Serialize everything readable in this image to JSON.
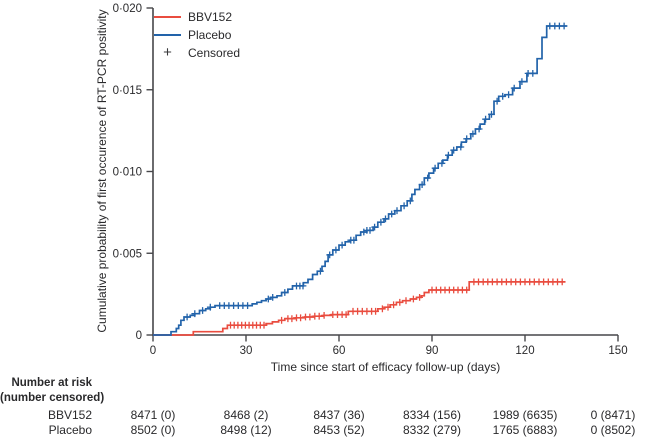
{
  "figure": {
    "y_axis_title": "Cumulative probability of first occurence of RT-PCR positivity",
    "x_axis_title": "Time since start of efficacy follow-up (days)"
  },
  "legend": {
    "items": [
      {
        "label": "BBV152",
        "marker": "line",
        "color": "#e94c3f"
      },
      {
        "label": "Placebo",
        "marker": "line",
        "color": "#2263aa"
      },
      {
        "label": "Censored",
        "marker": "+",
        "color": "#39393b"
      }
    ]
  },
  "colors": {
    "axis": "#47474a",
    "text": "#2a2a2c",
    "bbv152": "#e94c3f",
    "placebo": "#2263aa"
  },
  "risk_table": {
    "header_line1": "Number at risk",
    "header_line2": "(number censored)",
    "column_days": [
      0,
      30,
      60,
      90,
      120,
      150
    ],
    "rows": [
      {
        "label": "BBV152",
        "values": [
          "8471 (0)",
          "8468 (2)",
          "8437 (36)",
          "8334 (156)",
          "1989 (6635)",
          "0 (8471)"
        ]
      },
      {
        "label": "Placebo",
        "values": [
          "8502 (0)",
          "8498 (12)",
          "8453 (52)",
          "8332 (279)",
          "1765 (6883)",
          "0 (8502)"
        ]
      }
    ]
  },
  "chart_data": {
    "type": "line",
    "subtype": "kaplan-meier-step",
    "title": "",
    "xlabel": "Time since start of efficacy follow-up (days)",
    "ylabel": "Cumulative probability of first occurence of RT-PCR positivity",
    "xlim": [
      0,
      150
    ],
    "ylim": [
      0,
      0.02
    ],
    "grid": false,
    "legend_position": "top-left",
    "x_ticks": [
      {
        "value": 0,
        "label": "0"
      },
      {
        "value": 30,
        "label": "30"
      },
      {
        "value": 60,
        "label": "60"
      },
      {
        "value": 90,
        "label": "90"
      },
      {
        "value": 120,
        "label": "120"
      },
      {
        "value": 150,
        "label": "150"
      }
    ],
    "y_ticks": [
      {
        "value": 0,
        "label": "0"
      },
      {
        "value": 0.005,
        "label": "0·005"
      },
      {
        "value": 0.01,
        "label": "0·010"
      },
      {
        "value": 0.015,
        "label": "0·015"
      },
      {
        "value": 0.02,
        "label": "0·020"
      }
    ],
    "series": [
      {
        "name": "BBV152",
        "color": "#e94c3f",
        "points": [
          [
            0,
            0
          ],
          [
            13,
            0.0002
          ],
          [
            22.5,
            0.0004
          ],
          [
            24,
            0.0006
          ],
          [
            36.5,
            0.0007
          ],
          [
            38.5,
            0.0008
          ],
          [
            40.5,
            0.0009
          ],
          [
            42.5,
            0.001
          ],
          [
            46,
            0.00105
          ],
          [
            49,
            0.0011
          ],
          [
            52,
            0.00115
          ],
          [
            55,
            0.0012
          ],
          [
            57.5,
            0.00125
          ],
          [
            63,
            0.00145
          ],
          [
            72.5,
            0.0016
          ],
          [
            74.5,
            0.0017
          ],
          [
            76.5,
            0.00185
          ],
          [
            78.5,
            0.002
          ],
          [
            80.5,
            0.0021
          ],
          [
            83,
            0.0022
          ],
          [
            85,
            0.0023
          ],
          [
            86.5,
            0.0024
          ],
          [
            87.5,
            0.0026
          ],
          [
            89,
            0.00275
          ],
          [
            102,
            0.00325
          ],
          [
            133,
            0.00325
          ]
        ],
        "censored_days": [
          25,
          26.2,
          27.4,
          28.6,
          29.8,
          31,
          32.2,
          33.4,
          34.6,
          35.8,
          41.5,
          43.5,
          44.8,
          46.3,
          47.6,
          49.2,
          50.6,
          52.2,
          53.6,
          55.2,
          58,
          59.5,
          61,
          62.3,
          64.5,
          66,
          67.5,
          69,
          70.5,
          71.8,
          74,
          75.8,
          77.6,
          79.6,
          81.6,
          84,
          86,
          90,
          91.4,
          92.8,
          94.2,
          95.6,
          97,
          98.4,
          99.8,
          101.2,
          103.5,
          105,
          106.5,
          108,
          109.5,
          111,
          112.5,
          114,
          115.5,
          117,
          118.5,
          120,
          121.5,
          123,
          124.5,
          126,
          127.5,
          129,
          130.5,
          132
        ]
      },
      {
        "name": "Placebo",
        "color": "#2263aa",
        "points": [
          [
            0,
            0
          ],
          [
            5.8,
            0.0002
          ],
          [
            7.5,
            0.0004
          ],
          [
            8.3,
            0.0006
          ],
          [
            9,
            0.0009
          ],
          [
            10,
            0.0011
          ],
          [
            12,
            0.0012
          ],
          [
            13.5,
            0.0013
          ],
          [
            15,
            0.0015
          ],
          [
            17,
            0.0016
          ],
          [
            18.5,
            0.0017
          ],
          [
            20,
            0.0018
          ],
          [
            32,
            0.0019
          ],
          [
            33.5,
            0.002
          ],
          [
            35,
            0.0021
          ],
          [
            36.5,
            0.0022
          ],
          [
            38,
            0.0023
          ],
          [
            40,
            0.0024
          ],
          [
            41.5,
            0.0026
          ],
          [
            43.5,
            0.0028
          ],
          [
            45,
            0.003
          ],
          [
            48.5,
            0.0032
          ],
          [
            50,
            0.0034
          ],
          [
            51.5,
            0.0037
          ],
          [
            53,
            0.0039
          ],
          [
            54.5,
            0.0042
          ],
          [
            55.5,
            0.0045
          ],
          [
            56.5,
            0.0049
          ],
          [
            58,
            0.0052
          ],
          [
            60,
            0.0055
          ],
          [
            62,
            0.0057
          ],
          [
            63.5,
            0.0058
          ],
          [
            65.5,
            0.0061
          ],
          [
            67,
            0.0063
          ],
          [
            69,
            0.0064
          ],
          [
            71,
            0.0066
          ],
          [
            72.5,
            0.0069
          ],
          [
            74.5,
            0.0071
          ],
          [
            76,
            0.0074
          ],
          [
            78,
            0.0076
          ],
          [
            80,
            0.0079
          ],
          [
            82,
            0.0082
          ],
          [
            83.5,
            0.0086
          ],
          [
            84.5,
            0.0089
          ],
          [
            86,
            0.0092
          ],
          [
            87.5,
            0.0096
          ],
          [
            89,
            0.0099
          ],
          [
            90.5,
            0.0102
          ],
          [
            92,
            0.0105
          ],
          [
            93.5,
            0.0107
          ],
          [
            95,
            0.011
          ],
          [
            96.5,
            0.0113
          ],
          [
            98,
            0.0115
          ],
          [
            99.5,
            0.0118
          ],
          [
            101,
            0.012
          ],
          [
            102.5,
            0.0123
          ],
          [
            104,
            0.0126
          ],
          [
            105.5,
            0.0129
          ],
          [
            107,
            0.0132
          ],
          [
            108.5,
            0.0135
          ],
          [
            110,
            0.0143
          ],
          [
            111.5,
            0.0146
          ],
          [
            113.5,
            0.0147
          ],
          [
            116,
            0.0151
          ],
          [
            118.4,
            0.0155
          ],
          [
            120.6,
            0.016
          ],
          [
            123.9,
            0.0169
          ],
          [
            125.5,
            0.0182
          ],
          [
            127,
            0.0189
          ],
          [
            133.5,
            0.0189
          ]
        ],
        "censored_days": [
          11,
          13.5,
          16,
          18.5,
          21.5,
          23,
          24.5,
          26,
          27.5,
          29,
          30.5,
          37.2,
          38.6,
          42.5,
          46.3,
          47.4,
          48.4,
          54,
          57,
          59,
          61,
          63.8,
          64.8,
          68,
          69,
          70,
          71.5,
          73.5,
          75,
          77,
          78.7,
          81,
          83,
          86.8,
          88.6,
          91,
          93.2,
          95.3,
          97,
          99.3,
          101.2,
          103.2,
          105.2,
          107.3,
          109.2,
          111,
          112.8,
          114.7,
          116.5,
          119,
          121,
          122.5,
          128,
          129.6,
          131.1,
          132.6
        ]
      }
    ]
  }
}
